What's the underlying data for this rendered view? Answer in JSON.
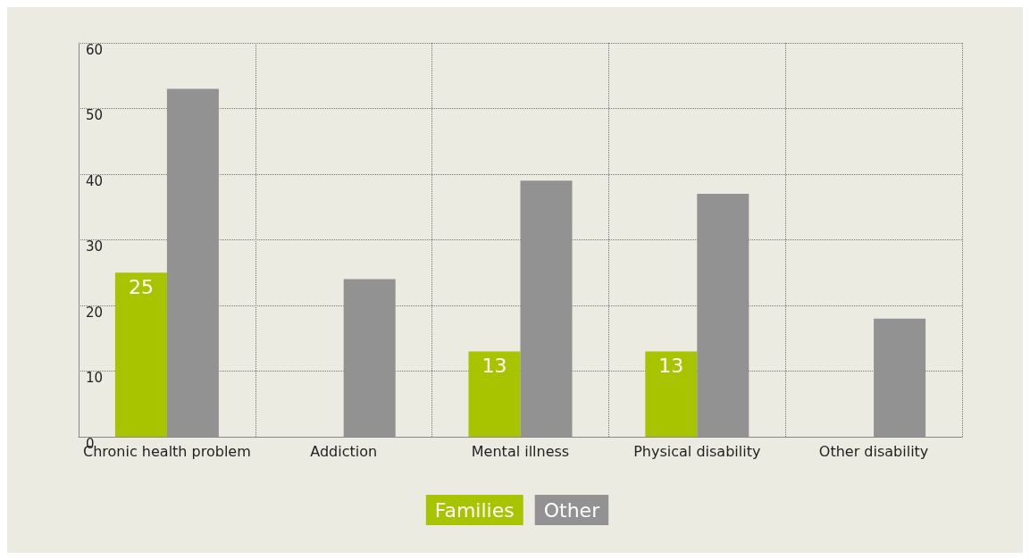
{
  "chart_data": {
    "type": "bar",
    "categories": [
      "Chronic health problem",
      "Addiction",
      "Mental illness",
      "Physical disability",
      "Other disability"
    ],
    "series": [
      {
        "name": "Families",
        "color": "#a8c400",
        "values": [
          25,
          null,
          13,
          13,
          null
        ],
        "value_labels": [
          "25",
          null,
          "13",
          "13",
          null
        ]
      },
      {
        "name": "Other",
        "color": "#929292",
        "values": [
          53,
          24,
          39,
          37,
          18
        ]
      }
    ],
    "ylim": [
      0,
      60
    ],
    "yticks": [
      0,
      10,
      20,
      30,
      40,
      50,
      60
    ],
    "grid": true,
    "legend": "bottom"
  }
}
